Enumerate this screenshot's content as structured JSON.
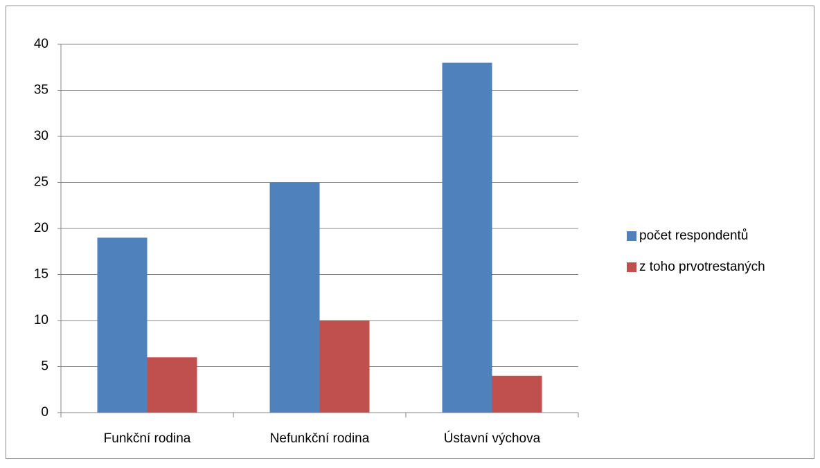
{
  "chart_data": {
    "type": "bar",
    "categories": [
      "Funkční rodina",
      "Nefunkční rodina",
      "Ústavní výchova"
    ],
    "series": [
      {
        "name": "počet respondentů",
        "color": "#4f81bd",
        "values": [
          19,
          25,
          38
        ]
      },
      {
        "name": "z toho prvotrestaných",
        "color": "#c0504d",
        "values": [
          6,
          10,
          4
        ]
      }
    ],
    "ylim": [
      0,
      40
    ],
    "yticks": [
      0,
      5,
      10,
      15,
      20,
      25,
      30,
      35,
      40
    ],
    "grid": true,
    "legend": "right"
  }
}
